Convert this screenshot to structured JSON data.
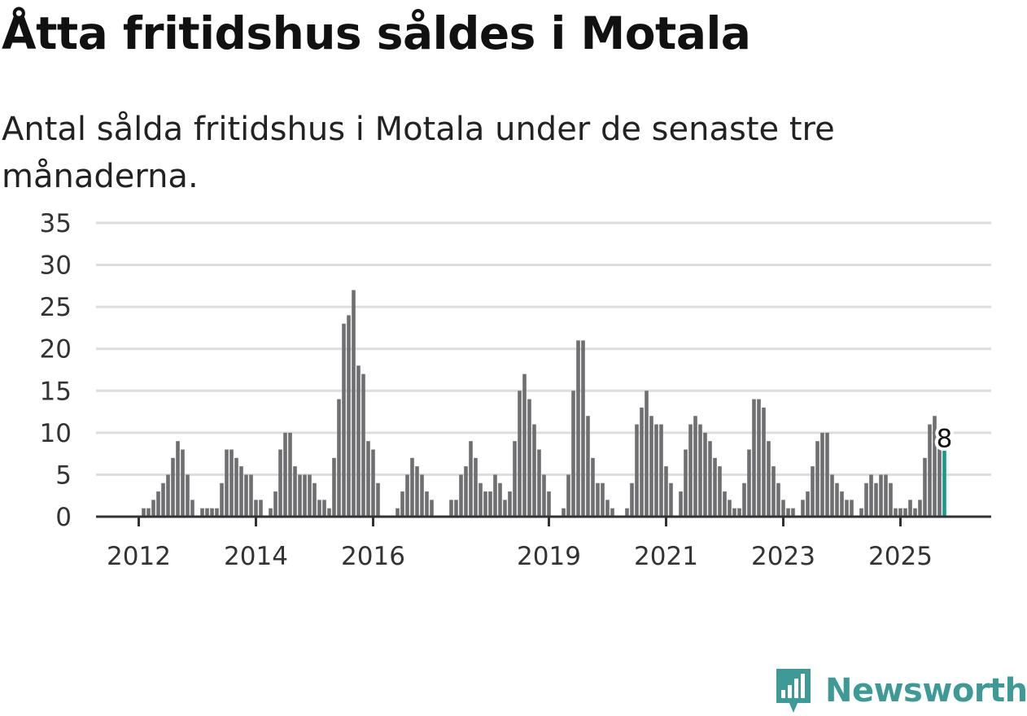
{
  "title": "Åtta fritidshus såldes i Motala",
  "subtitle": "Antal sålda fritidshus i Motala under de senaste tre månaderna.",
  "brand": {
    "name": "Newsworthy",
    "color": "#3e9a96",
    "icon": "newsworthy-logo-icon"
  },
  "colors": {
    "bar": "#6f6e70",
    "highlight": "#1a9a8e",
    "grid": "#dddddd",
    "axis": "#333333"
  },
  "chart_data": {
    "type": "bar",
    "title": "Åtta fritidshus såldes i Motala",
    "xlabel": "",
    "ylabel": "",
    "ylim": [
      0,
      35
    ],
    "yticks": [
      "0",
      "5",
      "10",
      "15",
      "20",
      "25",
      "30",
      "35"
    ],
    "xticks": [
      {
        "label": "2012",
        "index": 0
      },
      {
        "label": "2014",
        "index": 24
      },
      {
        "label": "2016",
        "index": 48
      },
      {
        "label": "2019",
        "index": 84
      },
      {
        "label": "2021",
        "index": 108
      },
      {
        "label": "2023",
        "index": 132
      },
      {
        "label": "2025",
        "index": 156
      }
    ],
    "highlight_label": "8",
    "values": [
      0,
      1,
      1,
      2,
      3,
      4,
      5,
      7,
      9,
      8,
      5,
      2,
      0,
      1,
      1,
      1,
      1,
      4,
      8,
      8,
      7,
      6,
      5,
      5,
      2,
      2,
      0,
      1,
      3,
      8,
      10,
      10,
      6,
      5,
      5,
      5,
      4,
      2,
      2,
      1,
      7,
      14,
      23,
      24,
      27,
      18,
      17,
      9,
      8,
      4,
      0,
      0,
      0,
      1,
      3,
      5,
      7,
      6,
      5,
      3,
      2,
      0,
      0,
      0,
      2,
      2,
      5,
      6,
      9,
      7,
      4,
      3,
      3,
      5,
      4,
      2,
      3,
      9,
      15,
      17,
      14,
      11,
      8,
      5,
      3,
      0,
      0,
      1,
      5,
      15,
      21,
      21,
      12,
      7,
      4,
      4,
      2,
      1,
      0,
      0,
      1,
      4,
      11,
      13,
      15,
      12,
      11,
      11,
      6,
      4,
      0,
      3,
      8,
      11,
      12,
      11,
      10,
      9,
      7,
      6,
      3,
      2,
      1,
      1,
      4,
      8,
      14,
      14,
      13,
      9,
      6,
      4,
      2,
      1,
      1,
      0,
      2,
      3,
      6,
      9,
      10,
      10,
      5,
      4,
      3,
      2,
      2,
      0,
      1,
      4,
      5,
      4,
      5,
      5,
      4,
      1,
      1,
      1,
      2,
      1,
      2,
      7,
      11,
      12,
      10,
      8
    ]
  }
}
